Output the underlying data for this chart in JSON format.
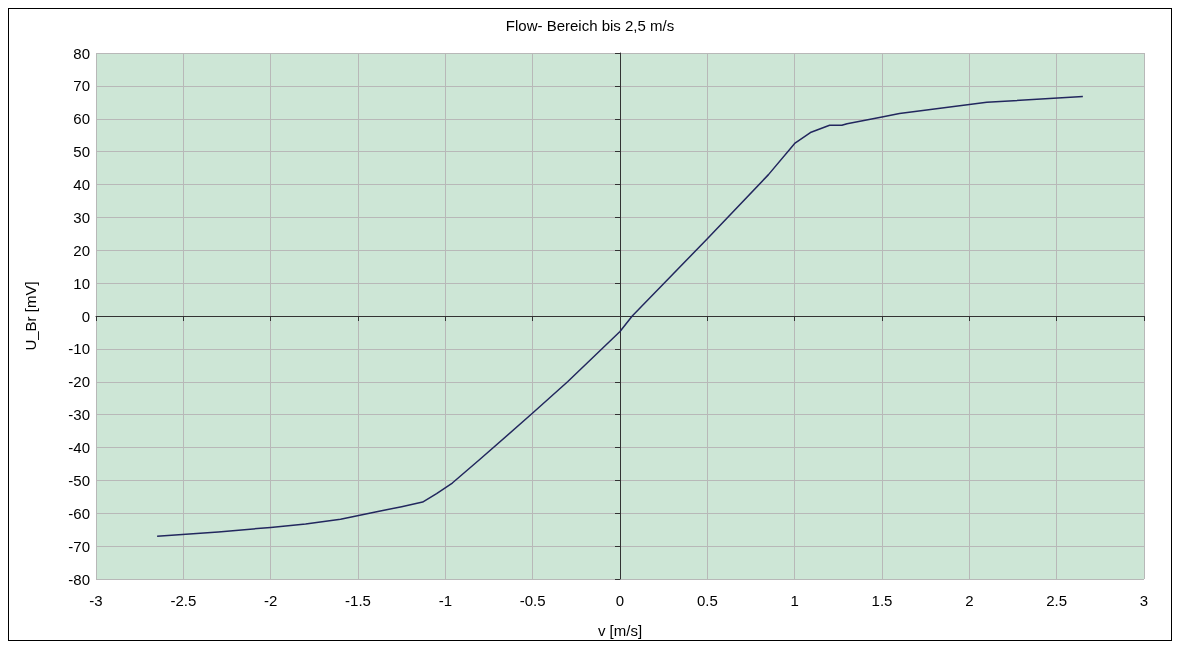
{
  "chart_data": {
    "type": "line",
    "title": "Flow- Bereich bis 2,5 m/s",
    "xlabel": "v [m/s]",
    "ylabel": "U_Br [mV]",
    "x": [
      -2.65,
      -2.3,
      -2.0,
      -1.8,
      -1.6,
      -1.4,
      -1.25,
      -1.13,
      -1.05,
      -0.96,
      -0.8,
      -0.5,
      -0.3,
      0.0,
      0.07,
      0.5,
      0.85,
      1.0,
      1.09,
      1.2,
      1.27,
      1.3,
      1.5,
      1.6,
      2.0,
      2.1,
      2.65
    ],
    "series": [
      {
        "color": "#22275e",
        "values": [
          -67,
          -65.7,
          -64.3,
          -63.3,
          -61.8,
          -59.6,
          -58,
          -56.6,
          -54,
          -50.8,
          -43.5,
          -29.5,
          -20,
          -4.7,
          0,
          23.5,
          43,
          52.5,
          55.8,
          58,
          58,
          58.5,
          60.5,
          61.6,
          64.3,
          65,
          66.8
        ]
      }
    ],
    "xlim": [
      -3,
      3
    ],
    "xticks": [
      -3,
      -2.5,
      -2,
      -1.5,
      -1,
      -0.5,
      0,
      0.5,
      1,
      1.5,
      2,
      2.5,
      3
    ],
    "ylim": [
      -80,
      80
    ],
    "yticks": [
      -80,
      -70,
      -60,
      -50,
      -40,
      -30,
      -20,
      -10,
      0,
      10,
      20,
      30,
      40,
      50,
      60,
      70,
      80
    ],
    "grid": true,
    "marker": "none",
    "line_style": "solid"
  }
}
